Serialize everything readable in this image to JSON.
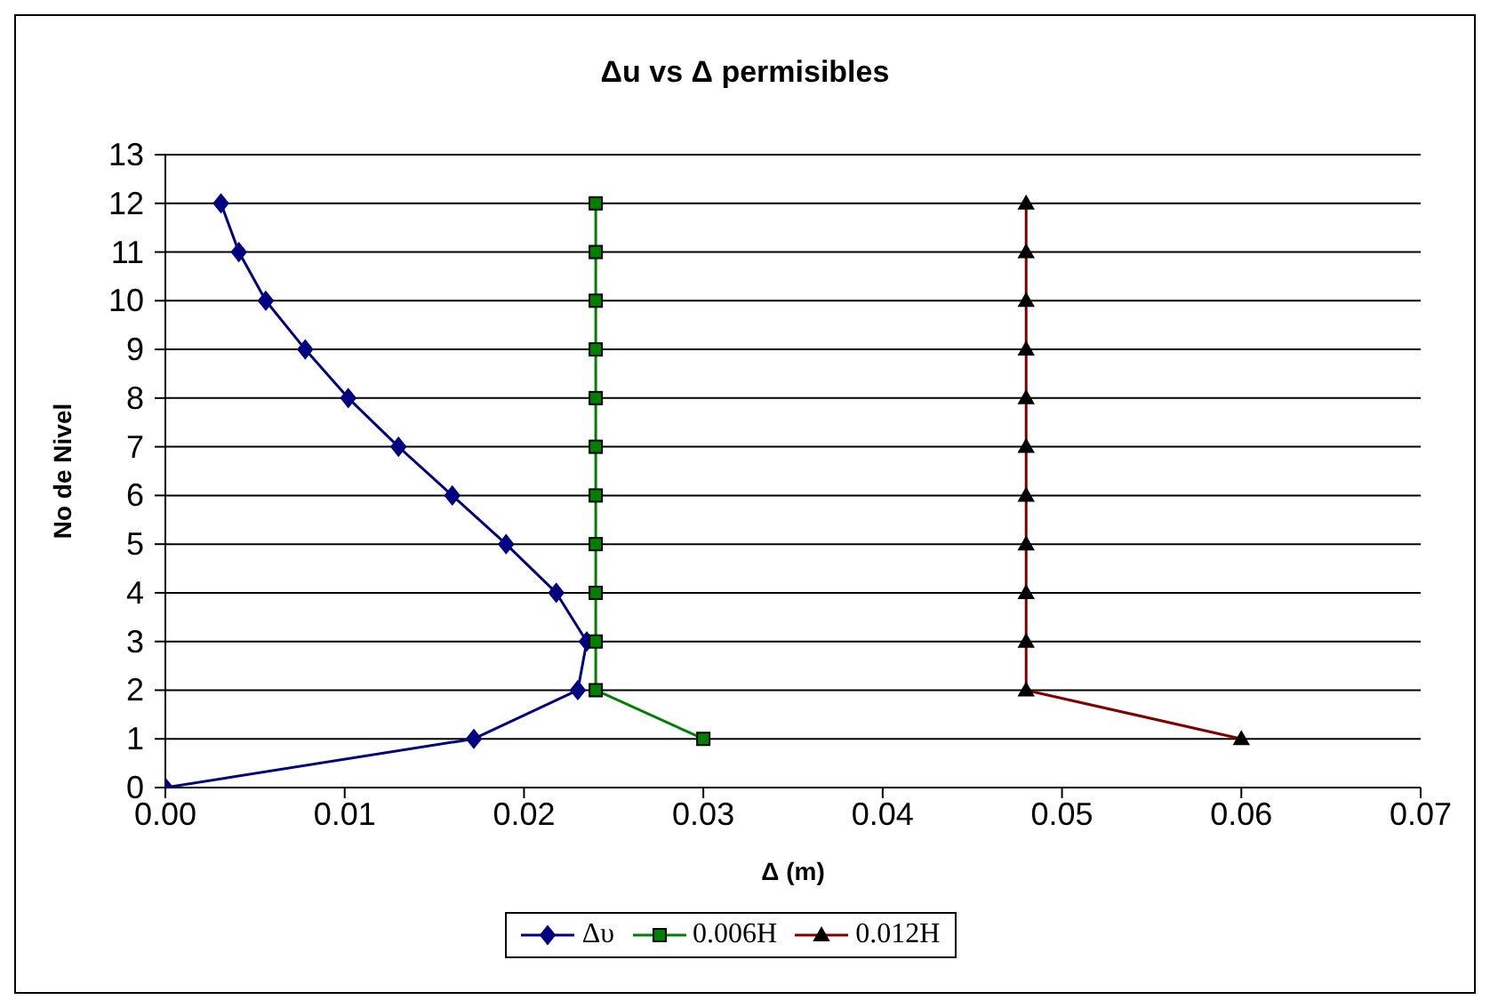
{
  "chart_data": {
    "type": "line",
    "title": "Δu vs Δ permisibles",
    "xlabel": "Δ (m)",
    "ylabel": "No de Nivel",
    "xlim": [
      0,
      0.07
    ],
    "xticks": [
      {
        "value": 0,
        "label": "0.00"
      },
      {
        "value": 0.01,
        "label": "0.01"
      },
      {
        "value": 0.02,
        "label": "0.02"
      },
      {
        "value": 0.03,
        "label": "0.03"
      },
      {
        "value": 0.04,
        "label": "0.04"
      },
      {
        "value": 0.05,
        "label": "0.05"
      },
      {
        "value": 0.06,
        "label": "0.06"
      },
      {
        "value": 0.07,
        "label": "0.07"
      }
    ],
    "ylim": [
      0,
      13
    ],
    "yticks": [
      0,
      1,
      2,
      3,
      4,
      5,
      6,
      7,
      8,
      9,
      10,
      11,
      12,
      13
    ],
    "grid": "y",
    "legend": "bottom",
    "line_style": "solid",
    "series": [
      {
        "name": "Δυ",
        "color": "#000080",
        "marker": "diamond",
        "x": [
          0,
          0.0172,
          0.023,
          0.0235,
          0.0218,
          0.019,
          0.016,
          0.013,
          0.0102,
          0.0078,
          0.0056,
          0.0041,
          0.0031
        ],
        "values": [
          0,
          1,
          2,
          3,
          4,
          5,
          6,
          7,
          8,
          9,
          10,
          11,
          12
        ]
      },
      {
        "name": "0.006H",
        "color": "#008000",
        "marker": "square",
        "x": [
          0.03,
          0.024,
          0.024,
          0.024,
          0.024,
          0.024,
          0.024,
          0.024,
          0.024,
          0.024,
          0.024,
          0.024
        ],
        "values": [
          1,
          2,
          3,
          4,
          5,
          6,
          7,
          8,
          9,
          10,
          11,
          12
        ]
      },
      {
        "name": "0.012H",
        "color": "#800000",
        "marker": "triangle",
        "x": [
          0.06,
          0.048,
          0.048,
          0.048,
          0.048,
          0.048,
          0.048,
          0.048,
          0.048,
          0.048,
          0.048,
          0.048
        ],
        "values": [
          1,
          2,
          3,
          4,
          5,
          6,
          7,
          8,
          9,
          10,
          11,
          12
        ]
      }
    ]
  }
}
